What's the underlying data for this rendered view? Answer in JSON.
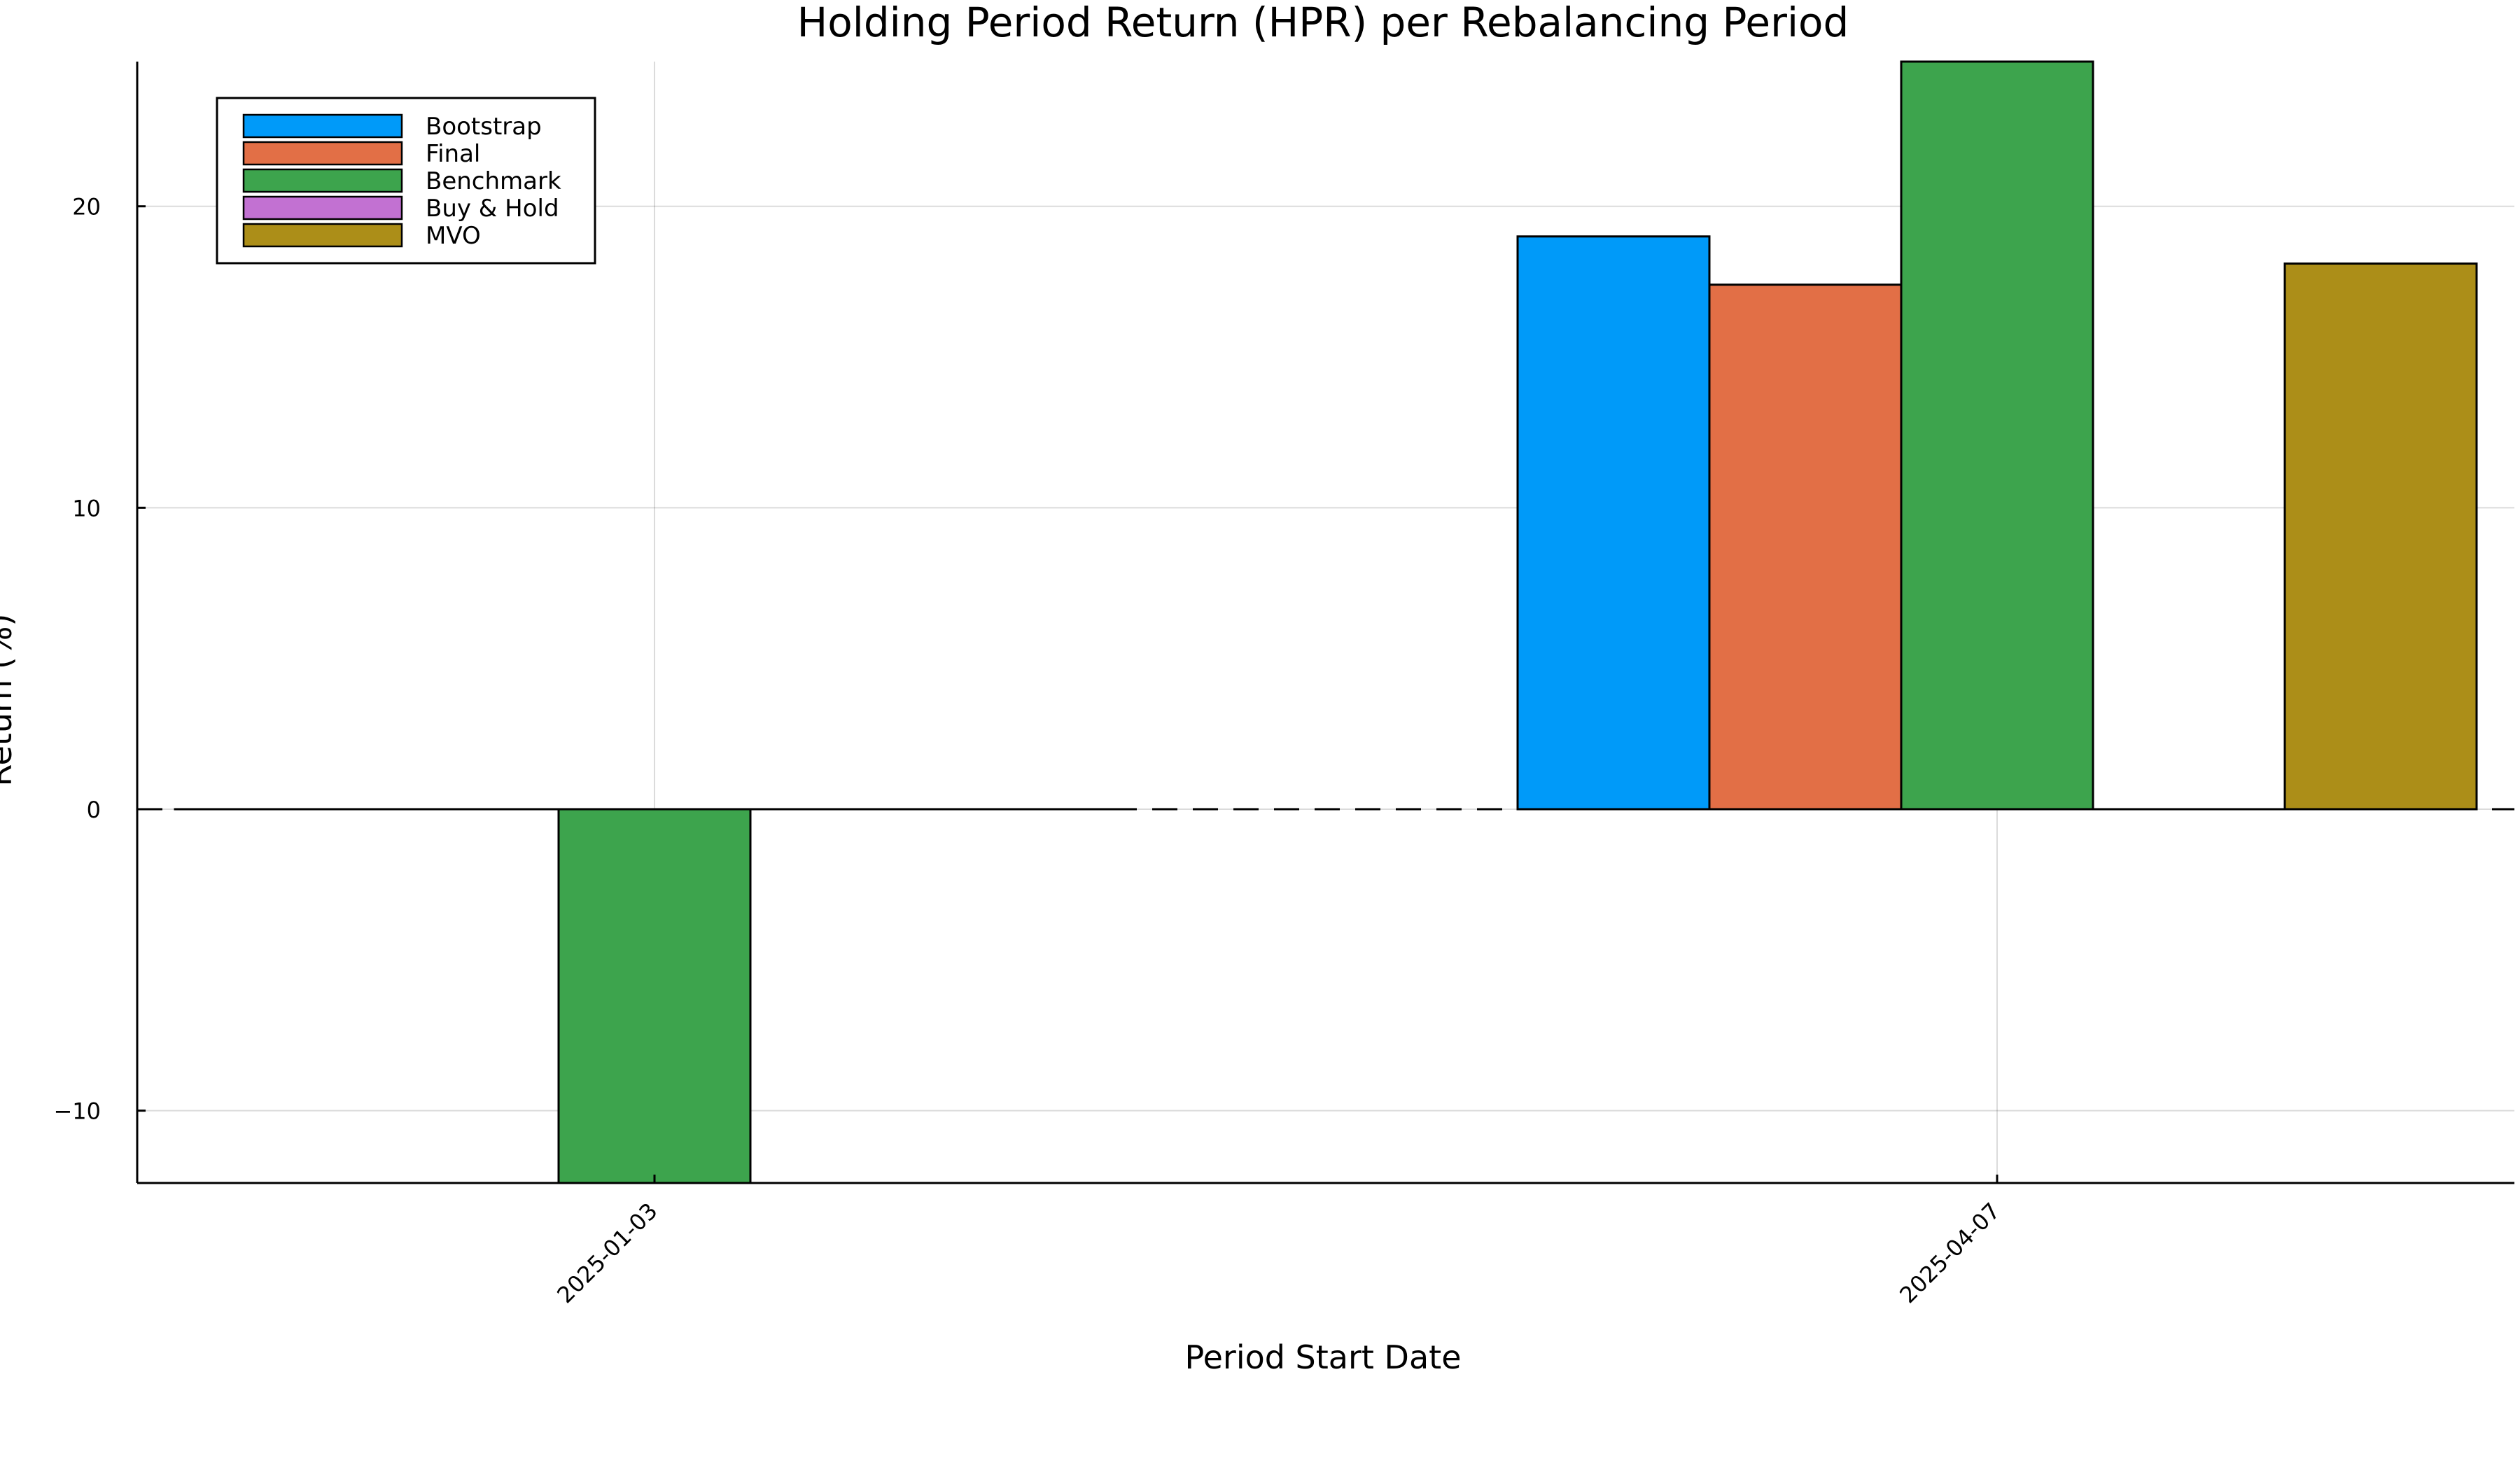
{
  "chart_data": {
    "type": "bar",
    "title": "Holding Period Return (HPR) per Rebalancing Period",
    "xlabel": "Period Start Date",
    "ylabel": "Return (%)",
    "categories": [
      "2025-01-03",
      "2025-04-07"
    ],
    "series": [
      {
        "name": "Bootstrap",
        "color": "#009AF9",
        "values": [
          0,
          19.0
        ]
      },
      {
        "name": "Final",
        "color": "#E26F46",
        "values": [
          0,
          17.4
        ]
      },
      {
        "name": "Benchmark",
        "color": "#3DA44D",
        "values": [
          -12.4,
          24.8
        ]
      },
      {
        "name": "Buy & Hold",
        "color": "#C271D2",
        "values": [
          0,
          0
        ]
      },
      {
        "name": "MVO",
        "color": "#AC8E18",
        "values": [
          0,
          18.1
        ]
      }
    ],
    "ylim": [
      -12.4,
      24.8
    ],
    "yticks": [
      -10,
      0,
      10,
      20
    ],
    "ytick_labels": [
      "−10",
      "0",
      "10",
      "20"
    ],
    "grid": true,
    "legend_position": "top-left",
    "reference_line": {
      "y": 0,
      "style": "dashed"
    }
  }
}
